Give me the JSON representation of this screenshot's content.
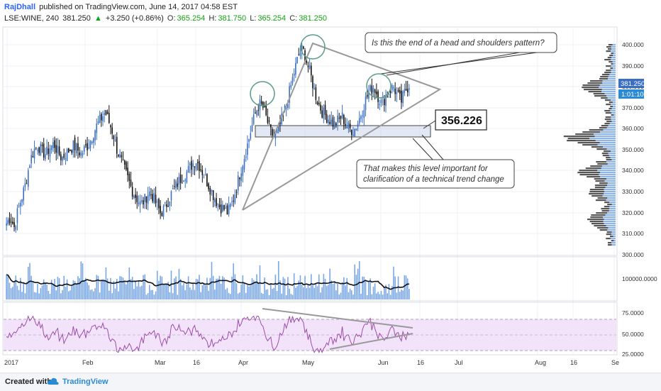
{
  "header": {
    "author": "RajDhall",
    "published": "published on TradingView.com, June 14, 2017 04:58 EST",
    "symbol": "LSE:WINE, 240",
    "last": "381.250",
    "change": "+3.250 (+0.86%)",
    "o_label": "O:",
    "o_val": "365.254",
    "h_label": "H:",
    "h_val": "381.750",
    "l_label": "L:",
    "l_val": "365.254",
    "c_label": "C:",
    "c_val": "381.250"
  },
  "footer": {
    "created": "Created with",
    "brand": "TradingView"
  },
  "annotations": {
    "callout_top": "Is this the end of a head and shoulders pattern?",
    "level_label": "356.226",
    "callout_bottom_1": "That makes this level important for",
    "callout_bottom_2": "clarification of a technical trend change",
    "price_tag": "381.250",
    "time_tag": "1:01:10"
  },
  "colors": {
    "candle_up": "#3a6fc4",
    "candle_down": "#111111",
    "volume": "#7aa7e6",
    "volume_ma": "#111111",
    "rsi_line": "#9c4ea9",
    "rsi_band": "#f3e3fa",
    "accent": "#2a8ad4"
  },
  "chart_data": [
    {
      "type": "candlestick",
      "x_ticks": [
        "2017",
        "Feb",
        "Mar",
        "16",
        "Apr",
        "May",
        "Jun",
        "16",
        "Jul",
        "Aug",
        "16",
        "Se"
      ],
      "y_ticks": [
        "400.000",
        "390.000",
        "380.000",
        "370.000",
        "360.000",
        "350.000",
        "340.000",
        "330.000",
        "320.000",
        "310.000",
        "300.000"
      ],
      "ylim": [
        300,
        402
      ],
      "closes": [
        315,
        318,
        313,
        322,
        328,
        335,
        345,
        350,
        352,
        349,
        348,
        351,
        353,
        349,
        346,
        348,
        350,
        352,
        350,
        348,
        351,
        353,
        358,
        362,
        365,
        368,
        363,
        358,
        350,
        345,
        340,
        335,
        330,
        327,
        324,
        326,
        330,
        328,
        324,
        320,
        322,
        326,
        330,
        333,
        336,
        338,
        340,
        343,
        345,
        342,
        338,
        334,
        330,
        326,
        323,
        322,
        320,
        324,
        330,
        338,
        345,
        352,
        360,
        367,
        372,
        370,
        364,
        358,
        356,
        360,
        366,
        372,
        380,
        388,
        395,
        398,
        392,
        386,
        378,
        372,
        368,
        366,
        364,
        362,
        364,
        366,
        362,
        360,
        359,
        363,
        368,
        374,
        378,
        380,
        376,
        372,
        375,
        378,
        380,
        376,
        373,
        378,
        381
      ],
      "volume_axis": "100000.0000",
      "rsi_axis": [
        "75.0000",
        "50.0000",
        "25.0000"
      ],
      "price_level": 356.226,
      "last_price": 381.25
    }
  ]
}
